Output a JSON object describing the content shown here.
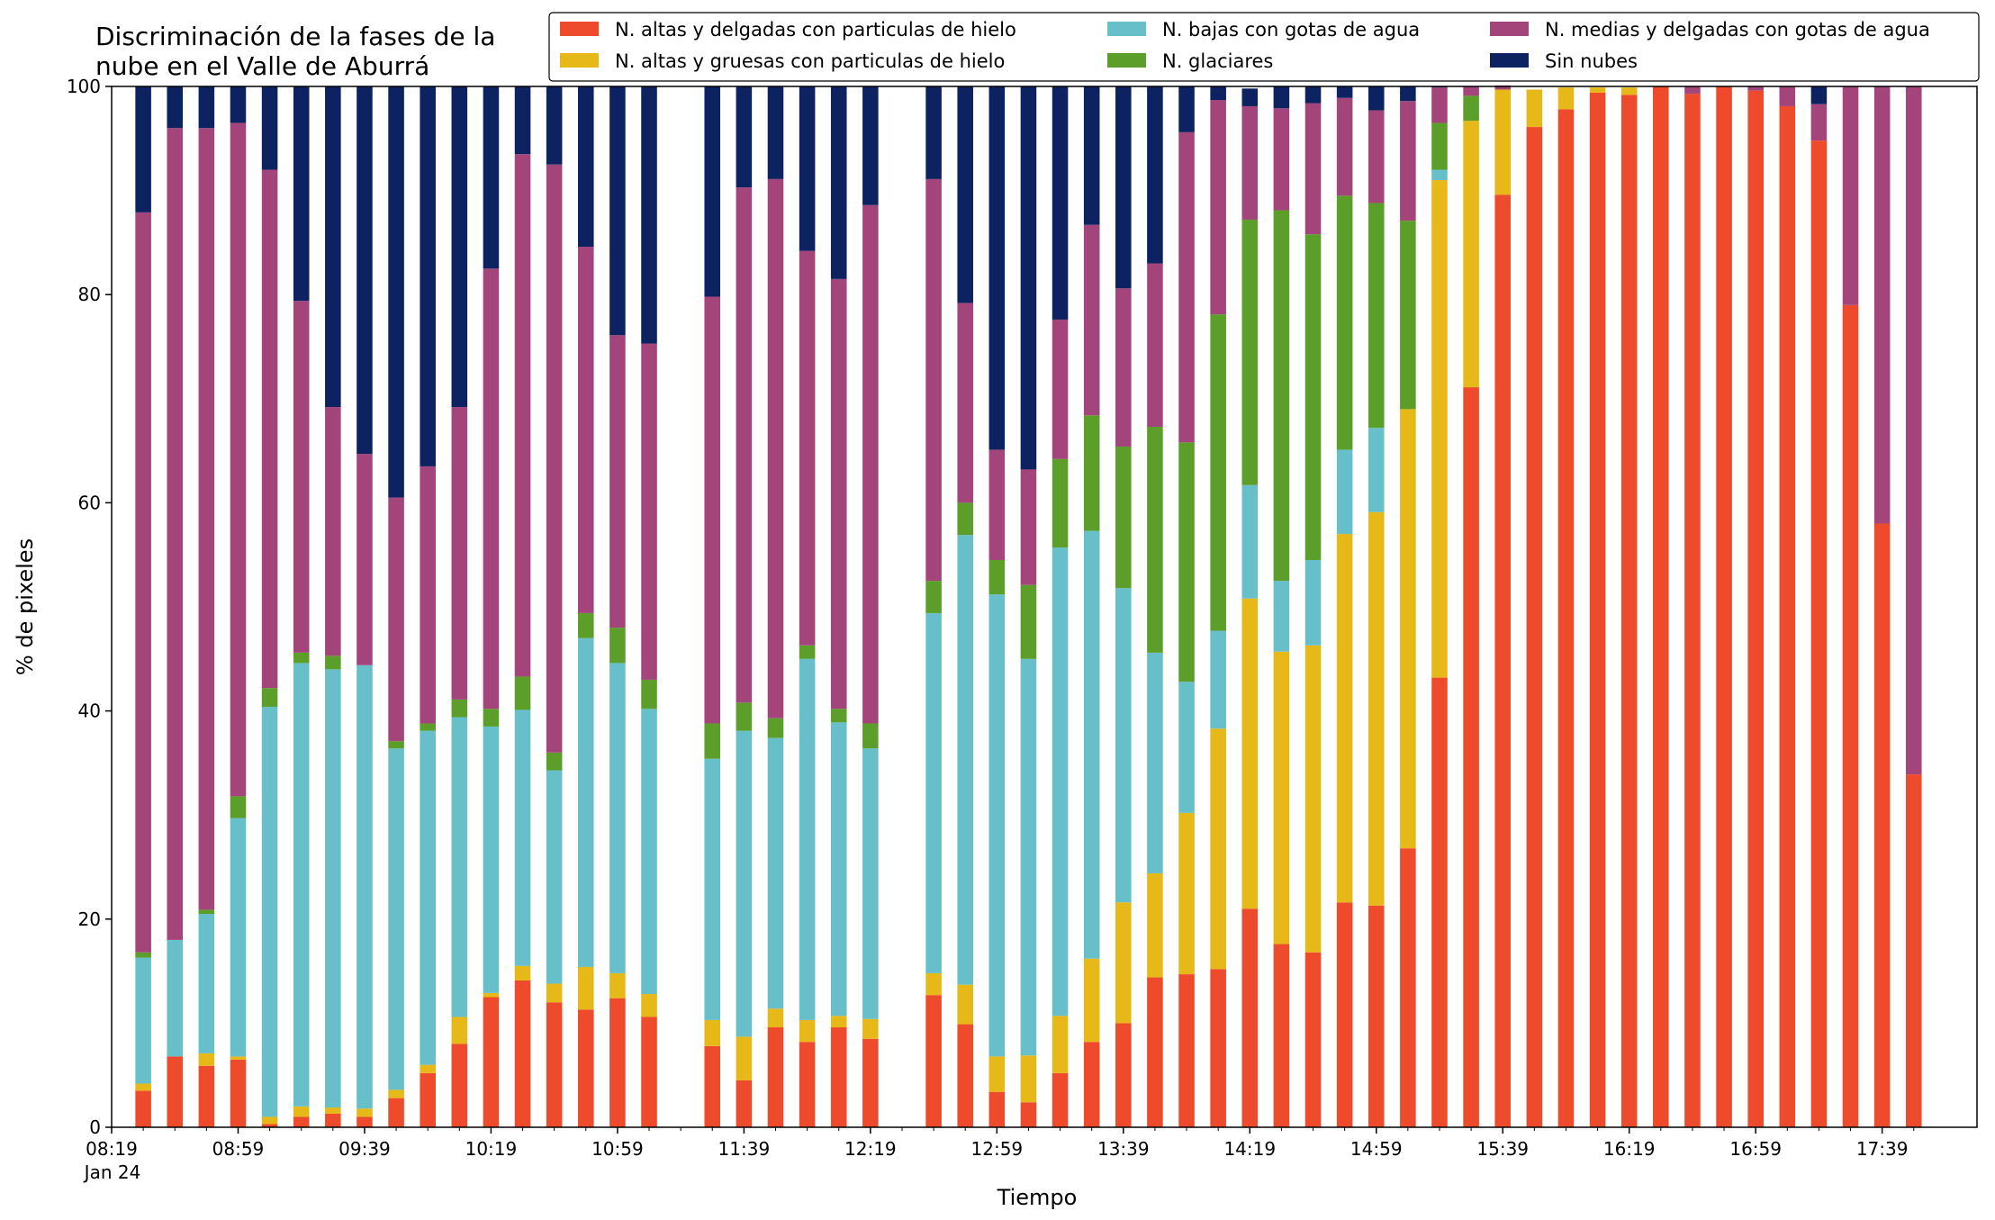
{
  "chart_data": {
    "type": "bar",
    "stacked": true,
    "title_lines": [
      "Discriminación de la fases de la",
      "nube en el Valle de Aburrá"
    ],
    "xlabel": "Tiempo",
    "ylabel": "% de pixeles",
    "ylim": [
      0,
      100
    ],
    "y_ticks": [
      "0",
      "20",
      "40",
      "60",
      "80",
      "100"
    ],
    "x_tick_labels": [
      "08:19",
      "08:59",
      "09:39",
      "10:19",
      "10:59",
      "11:39",
      "12:19",
      "12:59",
      "13:39",
      "14:19",
      "14:59",
      "15:39",
      "16:19",
      "16:59",
      "17:39"
    ],
    "x_tick_sublabel": "Jan 24",
    "x_ticks_per_label": 4,
    "x_ticks_after_last_label": 1,
    "grid": false,
    "legend_placement": "top-right",
    "legend_columns": 3,
    "slots": 59,
    "bar_slots": [
      1,
      2,
      3,
      4,
      5,
      6,
      7,
      8,
      9,
      10,
      11,
      12,
      13,
      14,
      15,
      16,
      17,
      19,
      20,
      21,
      22,
      23,
      24,
      26,
      27,
      28,
      29,
      30,
      31,
      32,
      33,
      34,
      35,
      36,
      37,
      38,
      39,
      40,
      41,
      42,
      43,
      44,
      45,
      46,
      47,
      48,
      49,
      50,
      51,
      52,
      53,
      54,
      55,
      56,
      57
    ],
    "series": [
      {
        "name": "N. altas y delgadas con particulas de hielo",
        "color": "#ee4a2c",
        "values": [
          3.5,
          6.8,
          5.9,
          6.5,
          0.3,
          1.0,
          1.3,
          1.0,
          2.8,
          5.2,
          8.0,
          12.5,
          14.1,
          12.0,
          11.3,
          12.4,
          10.6,
          7.8,
          4.5,
          9.6,
          8.2,
          9.6,
          8.5,
          12.7,
          9.9,
          3.4,
          2.4,
          5.2,
          8.2,
          10.0,
          14.4,
          14.7,
          15.2,
          21.0,
          17.6,
          16.8,
          21.6,
          21.3,
          26.8,
          43.2,
          71.1,
          89.6,
          96.1,
          97.8,
          99.4,
          99.2,
          100.0,
          99.3,
          100.0,
          99.6,
          98.1,
          94.8,
          79.0,
          58.0,
          33.9
        ]
      },
      {
        "name": "N. altas y gruesas con particulas de hielo",
        "color": "#e6b818",
        "values": [
          0.7,
          0.0,
          1.2,
          0.3,
          0.7,
          1.0,
          0.6,
          0.8,
          0.8,
          0.8,
          2.6,
          0.4,
          1.4,
          1.8,
          4.1,
          2.4,
          2.2,
          2.5,
          4.2,
          1.8,
          2.1,
          1.1,
          1.9,
          2.1,
          3.8,
          3.4,
          4.5,
          5.5,
          8.0,
          11.6,
          10.0,
          15.5,
          23.1,
          29.8,
          28.1,
          29.5,
          35.4,
          37.8,
          42.2,
          47.8,
          25.6,
          10.1,
          3.6,
          2.1,
          0.5,
          0.7,
          0.0,
          0.0,
          0.0,
          0.0,
          0.0,
          0.0,
          0.0,
          0.0,
          0.0
        ]
      },
      {
        "name": "N. bajas con gotas de agua",
        "color": "#66bfc9",
        "values": [
          12.1,
          11.2,
          13.4,
          22.9,
          39.4,
          42.6,
          42.1,
          42.6,
          32.8,
          32.1,
          28.8,
          25.6,
          24.6,
          20.5,
          31.6,
          29.8,
          27.4,
          25.1,
          29.4,
          26.0,
          34.7,
          28.2,
          26.0,
          34.6,
          43.2,
          44.4,
          38.1,
          45.0,
          41.1,
          30.2,
          21.2,
          12.6,
          9.4,
          10.9,
          6.8,
          8.2,
          8.1,
          8.1,
          0.0,
          1.0,
          0.0,
          0.0,
          0.0,
          0.0,
          0.0,
          0.0,
          0.0,
          0.0,
          0.0,
          0.0,
          0.0,
          0.0,
          0.0,
          0.0,
          0.0
        ]
      },
      {
        "name": "N. glaciares",
        "color": "#5b9e2a",
        "values": [
          0.5,
          0.0,
          0.4,
          2.1,
          1.8,
          1.0,
          1.3,
          0.0,
          0.7,
          0.7,
          1.7,
          1.7,
          3.2,
          1.7,
          2.4,
          3.4,
          2.8,
          3.4,
          2.7,
          1.9,
          1.3,
          1.3,
          2.4,
          3.1,
          3.1,
          3.3,
          7.1,
          8.5,
          11.1,
          13.6,
          21.7,
          23.0,
          30.4,
          25.5,
          35.6,
          31.3,
          24.4,
          21.6,
          18.1,
          4.5,
          2.4,
          0.0,
          0.0,
          0.0,
          0.0,
          0.0,
          0.0,
          0.0,
          0.0,
          0.0,
          0.0,
          0.0,
          0.0,
          0.0,
          0.0
        ]
      },
      {
        "name": "N. medias y delgadas con gotas de agua",
        "color": "#a3457a",
        "values": [
          71.1,
          78.0,
          75.1,
          64.7,
          49.8,
          33.8,
          23.9,
          20.3,
          23.4,
          24.7,
          28.1,
          42.3,
          50.2,
          56.5,
          35.2,
          28.1,
          32.3,
          41.0,
          49.5,
          51.8,
          37.9,
          41.3,
          49.8,
          38.6,
          19.2,
          10.6,
          11.1,
          13.4,
          18.3,
          15.2,
          15.7,
          29.8,
          20.6,
          10.9,
          9.8,
          12.6,
          9.4,
          8.9,
          11.5,
          3.4,
          0.9,
          0.4,
          0.0,
          0.0,
          0.0,
          0.0,
          0.0,
          0.7,
          0.0,
          0.4,
          1.9,
          3.5,
          21.0,
          42.0,
          66.1
        ]
      },
      {
        "name": "Sin nubes",
        "color": "#0d2260",
        "values": [
          12.1,
          4.0,
          4.0,
          3.5,
          8.0,
          20.6,
          30.8,
          35.3,
          39.5,
          36.5,
          30.8,
          17.5,
          6.5,
          7.5,
          15.4,
          23.9,
          24.7,
          20.2,
          9.7,
          8.9,
          15.8,
          18.5,
          11.4,
          8.9,
          20.8,
          34.9,
          36.8,
          22.4,
          13.3,
          19.4,
          17.0,
          4.4,
          1.3,
          1.7,
          2.1,
          1.6,
          1.1,
          2.3,
          1.4,
          0.1,
          0.0,
          0.0,
          0.0,
          0.0,
          0.0,
          0.0,
          0.0,
          0.0,
          0.0,
          0.0,
          0.0,
          1.7,
          0.0,
          0.0,
          0.0
        ]
      }
    ]
  }
}
